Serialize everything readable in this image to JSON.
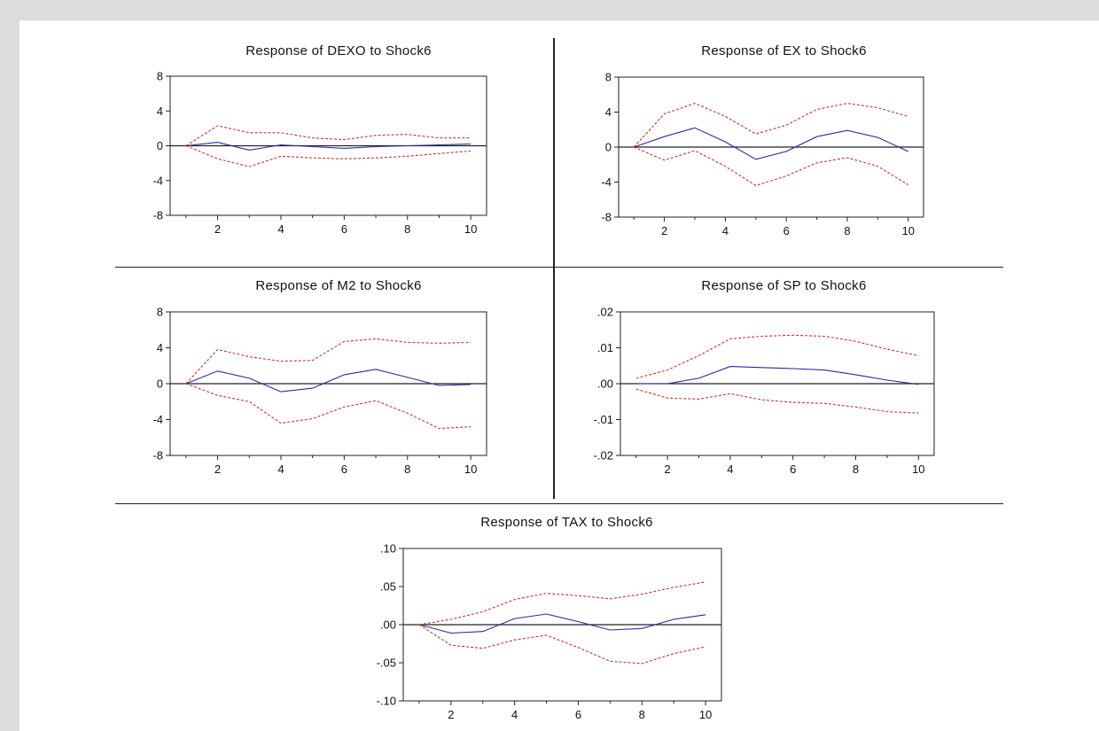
{
  "chart_data": [
    {
      "type": "line",
      "title": "Response of DEXO to Shock6",
      "x": [
        1,
        2,
        3,
        4,
        5,
        6,
        7,
        8,
        9,
        10
      ],
      "xticks": [
        "2",
        "4",
        "6",
        "8",
        "10"
      ],
      "xtick_values": [
        2,
        4,
        6,
        8,
        10
      ],
      "xlim": [
        0.5,
        10.5
      ],
      "ylim": [
        -8,
        8
      ],
      "yticks": [
        "-8",
        "-4",
        "0",
        "4",
        "8"
      ],
      "ytick_values": [
        -8,
        -4,
        0,
        4,
        8
      ],
      "grid": false,
      "series": [
        {
          "role": "response",
          "color": "#2b2b9a",
          "style": "solid",
          "values": [
            0,
            0.4,
            -0.5,
            0.1,
            -0.1,
            -0.3,
            -0.1,
            0.0,
            0.1,
            0.2
          ]
        },
        {
          "role": "upper",
          "color": "#c0392b",
          "style": "dashed",
          "values": [
            0,
            2.3,
            1.5,
            1.5,
            0.9,
            0.7,
            1.2,
            1.3,
            0.9,
            0.9
          ]
        },
        {
          "role": "lower",
          "color": "#c0392b",
          "style": "dashed",
          "values": [
            0,
            -1.5,
            -2.4,
            -1.2,
            -1.4,
            -1.5,
            -1.4,
            -1.2,
            -0.9,
            -0.6
          ]
        }
      ]
    },
    {
      "type": "line",
      "title": "Response of EX to Shock6",
      "x": [
        1,
        2,
        3,
        4,
        5,
        6,
        7,
        8,
        9,
        10
      ],
      "xticks": [
        "2",
        "4",
        "6",
        "8",
        "10"
      ],
      "xtick_values": [
        2,
        4,
        6,
        8,
        10
      ],
      "xlim": [
        0.5,
        10.5
      ],
      "ylim": [
        -8,
        8
      ],
      "yticks": [
        "-8",
        "-4",
        "0",
        "4",
        "8"
      ],
      "ytick_values": [
        -8,
        -4,
        0,
        4,
        8
      ],
      "grid": false,
      "series": [
        {
          "role": "response",
          "color": "#2b2b9a",
          "style": "solid",
          "values": [
            0,
            1.2,
            2.2,
            0.6,
            -1.4,
            -0.5,
            1.2,
            1.9,
            1.1,
            -0.5
          ]
        },
        {
          "role": "upper",
          "color": "#c0392b",
          "style": "dashed",
          "values": [
            0,
            3.8,
            5.0,
            3.5,
            1.5,
            2.5,
            4.3,
            5.0,
            4.5,
            3.5
          ]
        },
        {
          "role": "lower",
          "color": "#c0392b",
          "style": "dashed",
          "values": [
            0,
            -1.5,
            -0.4,
            -2.2,
            -4.4,
            -3.3,
            -1.8,
            -1.2,
            -2.2,
            -4.3
          ]
        }
      ]
    },
    {
      "type": "line",
      "title": "Response of M2 to Shock6",
      "x": [
        1,
        2,
        3,
        4,
        5,
        6,
        7,
        8,
        9,
        10
      ],
      "xticks": [
        "2",
        "4",
        "6",
        "8",
        "10"
      ],
      "xtick_values": [
        2,
        4,
        6,
        8,
        10
      ],
      "xlim": [
        0.5,
        10.5
      ],
      "ylim": [
        -8,
        8
      ],
      "yticks": [
        "-8",
        "-4",
        "0",
        "4",
        "8"
      ],
      "ytick_values": [
        -8,
        -4,
        0,
        4,
        8
      ],
      "grid": false,
      "series": [
        {
          "role": "response",
          "color": "#2b2b9a",
          "style": "solid",
          "values": [
            0,
            1.4,
            0.6,
            -0.9,
            -0.5,
            1.0,
            1.6,
            0.7,
            -0.2,
            -0.1
          ]
        },
        {
          "role": "upper",
          "color": "#c0392b",
          "style": "dashed",
          "values": [
            0,
            3.8,
            3.0,
            2.5,
            2.6,
            4.7,
            5.0,
            4.6,
            4.5,
            4.6
          ]
        },
        {
          "role": "lower",
          "color": "#c0392b",
          "style": "dashed",
          "values": [
            0,
            -1.3,
            -2.0,
            -4.4,
            -3.9,
            -2.6,
            -1.9,
            -3.3,
            -5.0,
            -4.8
          ]
        }
      ]
    },
    {
      "type": "line",
      "title": "Response of SP to Shock6",
      "x": [
        1,
        2,
        3,
        4,
        5,
        6,
        7,
        8,
        9,
        10
      ],
      "xticks": [
        "2",
        "4",
        "6",
        "8",
        "10"
      ],
      "xtick_values": [
        2,
        4,
        6,
        8,
        10
      ],
      "xlim": [
        0.5,
        10.5
      ],
      "ylim": [
        -0.02,
        0.02
      ],
      "yticks": [
        "-.02",
        "-.01",
        ".00",
        ".01",
        ".02"
      ],
      "ytick_values": [
        -0.02,
        -0.01,
        0.0,
        0.01,
        0.02
      ],
      "grid": false,
      "series": [
        {
          "role": "response",
          "color": "#2b2b9a",
          "style": "solid",
          "values": [
            0.0,
            0.0,
            0.0015,
            0.0048,
            0.0045,
            0.0042,
            0.0038,
            0.0025,
            0.001,
            -0.0002
          ]
        },
        {
          "role": "upper",
          "color": "#c0392b",
          "style": "dashed",
          "values": [
            0.0015,
            0.0038,
            0.0078,
            0.0125,
            0.0132,
            0.0135,
            0.0132,
            0.0118,
            0.0096,
            0.0078
          ]
        },
        {
          "role": "lower",
          "color": "#c0392b",
          "style": "dashed",
          "values": [
            -0.0015,
            -0.004,
            -0.0043,
            -0.0028,
            -0.0045,
            -0.0052,
            -0.0055,
            -0.0065,
            -0.0078,
            -0.0082
          ]
        }
      ]
    },
    {
      "type": "line",
      "title": "Response of TAX to Shock6",
      "x": [
        1,
        2,
        3,
        4,
        5,
        6,
        7,
        8,
        9,
        10
      ],
      "xticks": [
        "2",
        "4",
        "6",
        "8",
        "10"
      ],
      "xtick_values": [
        2,
        4,
        6,
        8,
        10
      ],
      "xlim": [
        0.5,
        10.5
      ],
      "ylim": [
        -0.1,
        0.1
      ],
      "yticks": [
        "-.10",
        "-.05",
        ".00",
        ".05",
        ".10"
      ],
      "ytick_values": [
        -0.1,
        -0.05,
        0.0,
        0.05,
        0.1
      ],
      "grid": false,
      "series": [
        {
          "role": "response",
          "color": "#2b2b9a",
          "style": "solid",
          "values": [
            0.0,
            -0.011,
            -0.009,
            0.008,
            0.014,
            0.004,
            -0.007,
            -0.005,
            0.007,
            0.013
          ]
        },
        {
          "role": "upper",
          "color": "#c0392b",
          "style": "dashed",
          "values": [
            0.0,
            0.007,
            0.017,
            0.033,
            0.041,
            0.038,
            0.034,
            0.04,
            0.049,
            0.056
          ]
        },
        {
          "role": "lower",
          "color": "#c0392b",
          "style": "dashed",
          "values": [
            0.0,
            -0.027,
            -0.031,
            -0.02,
            -0.014,
            -0.03,
            -0.048,
            -0.051,
            -0.038,
            -0.029
          ]
        }
      ]
    }
  ]
}
